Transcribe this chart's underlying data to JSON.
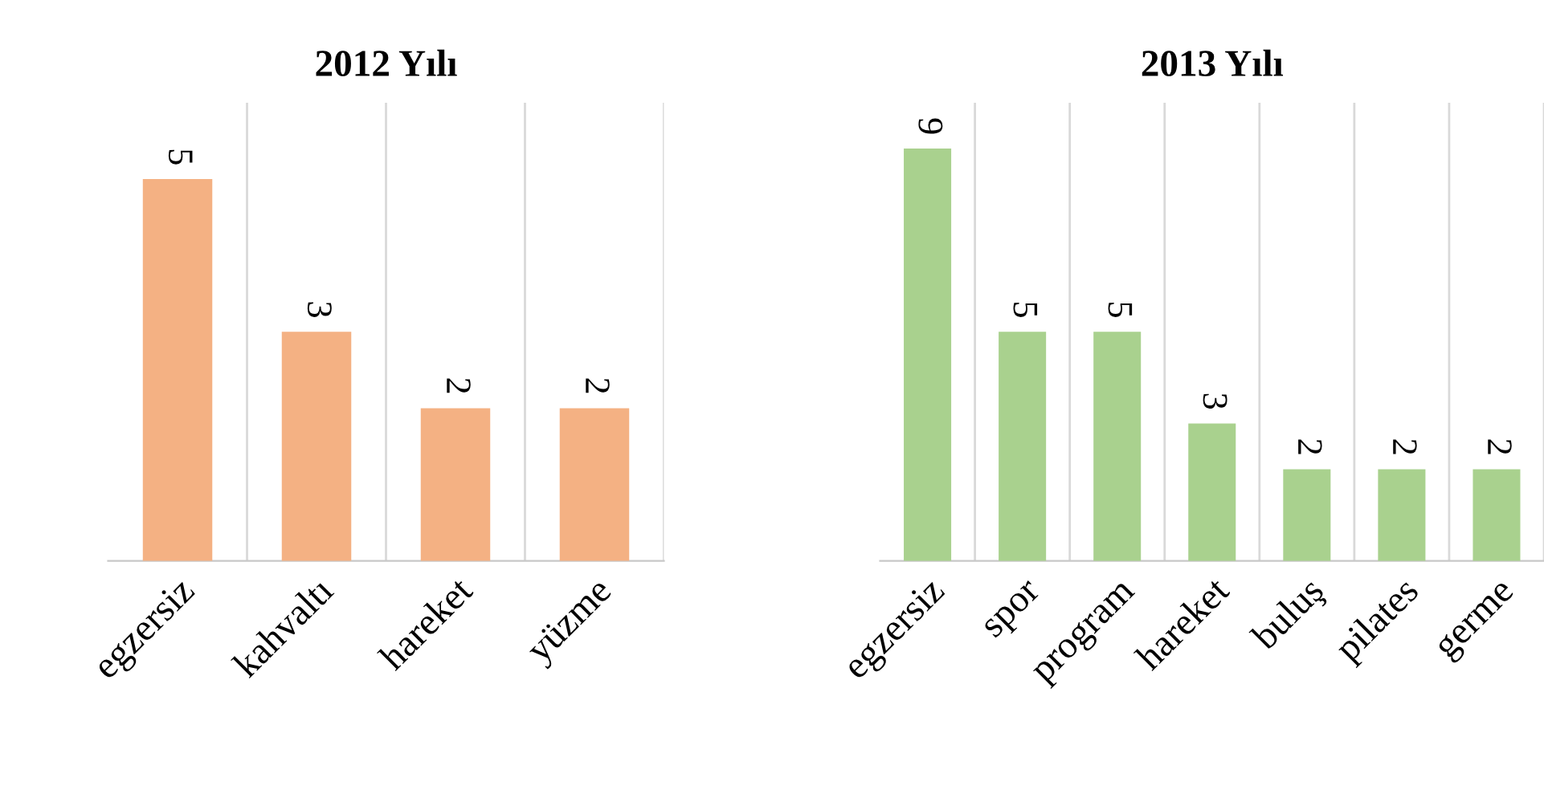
{
  "chart_data": [
    {
      "type": "bar",
      "title": "2012 Yılı",
      "categories": [
        "egzersiz",
        "kahvaltı",
        "hareket",
        "yüzme"
      ],
      "values": [
        5,
        3,
        2,
        2
      ],
      "color": "#f4b183",
      "ylim": [
        0,
        6
      ],
      "data_labels": true,
      "grid": "x",
      "tick_labels": "x"
    },
    {
      "type": "bar",
      "title": "2013 Yılı",
      "categories": [
        "egzersiz",
        "spor",
        "program",
        "hareket",
        "buluş",
        "pilates",
        "germe"
      ],
      "values": [
        9,
        5,
        5,
        3,
        2,
        2,
        2
      ],
      "color": "#a9d18e",
      "ylim": [
        0,
        10
      ],
      "data_labels": true,
      "grid": "x",
      "tick_labels": "x"
    }
  ]
}
